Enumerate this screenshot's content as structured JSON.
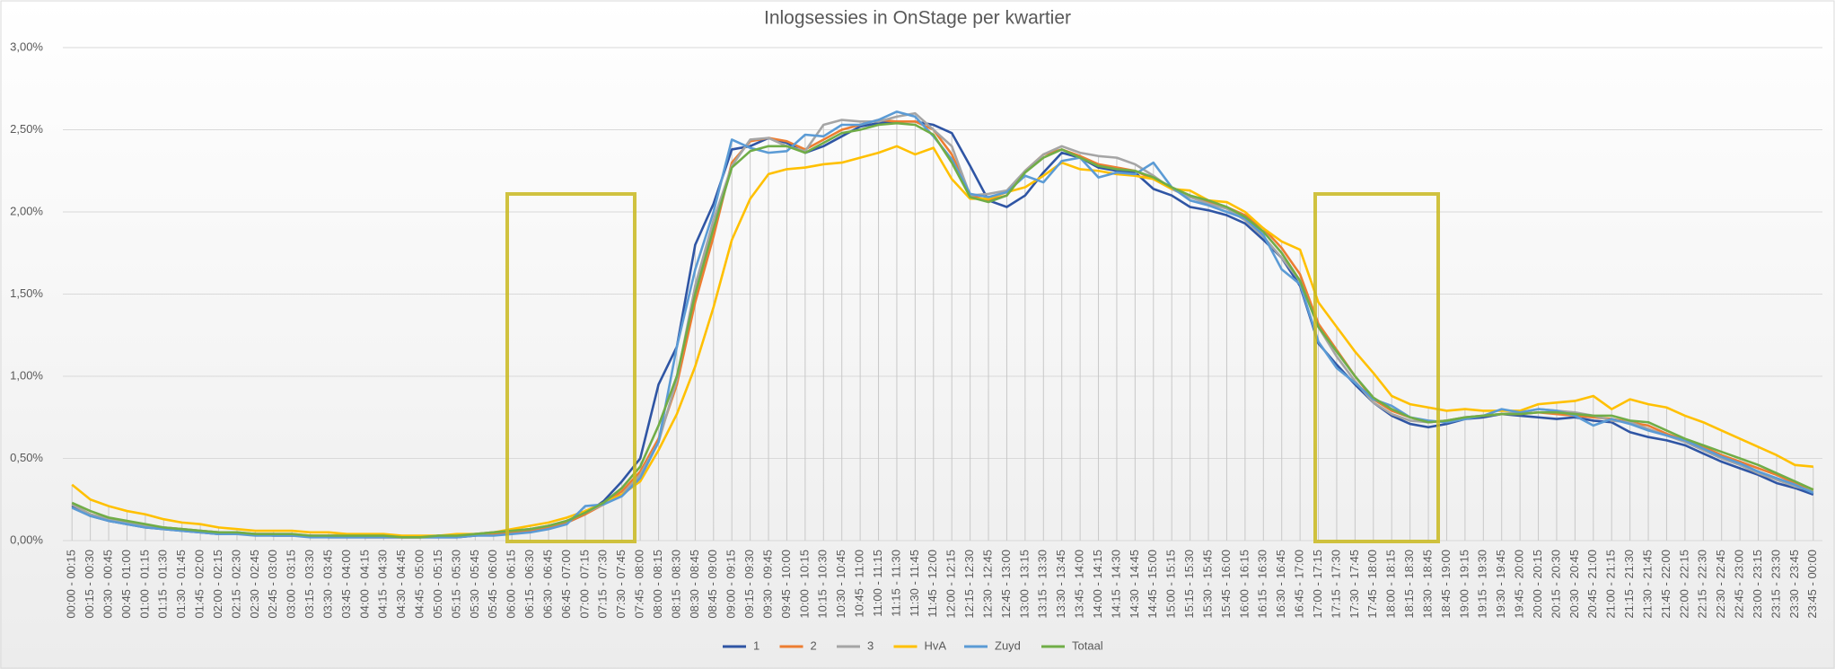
{
  "chart_data": {
    "type": "line",
    "title": "Inlogsessies in OnStage per kwartier",
    "categories": [
      "00:00 - 00:15",
      "00:15 - 00:30",
      "00:30 - 00:45",
      "00:45 - 01:00",
      "01:00 - 01:15",
      "01:15 - 01:30",
      "01:30 - 01:45",
      "01:45 - 02:00",
      "02:00 - 02:15",
      "02:15 - 02:30",
      "02:30 - 02:45",
      "02:45 - 03:00",
      "03:00 - 03:15",
      "03:15 - 03:30",
      "03:30 - 03:45",
      "03:45 - 04:00",
      "04:00 - 04:15",
      "04:15 - 04:30",
      "04:30 - 04:45",
      "04:45 - 05:00",
      "05:00 - 05:15",
      "05:15 - 05:30",
      "05:30 - 05:45",
      "05:45 - 06:00",
      "06:00 - 06:15",
      "06:15 - 06:30",
      "06:30 - 06:45",
      "06:45 - 07:00",
      "07:00 - 07:15",
      "07:15 - 07:30",
      "07:30 - 07:45",
      "07:45 - 08:00",
      "08:00 - 08:15",
      "08:15 - 08:30",
      "08:30 - 08:45",
      "08:45 - 09:00",
      "09:00 - 09:15",
      "09:15 - 09:30",
      "09:30 - 09:45",
      "09:45 - 10:00",
      "10:00 - 10:15",
      "10:15 - 10:30",
      "10:30 - 10:45",
      "10:45 - 11:00",
      "11:00 - 11:15",
      "11:15 - 11:30",
      "11:30 - 11:45",
      "11:45 - 12:00",
      "12:00 - 12:15",
      "12:15 - 12:30",
      "12:30 - 12:45",
      "12:45 - 13:00",
      "13:00 - 13:15",
      "13:15 - 13:30",
      "13:30 - 13:45",
      "13:45 - 14:00",
      "14:00 - 14:15",
      "14:15 - 14:30",
      "14:30 - 14:45",
      "14:45 - 15:00",
      "15:00 - 15:15",
      "15:15 - 15:30",
      "15:30 - 15:45",
      "15:45 - 16:00",
      "16:00 - 16:15",
      "16:15 - 16:30",
      "16:30 - 16:45",
      "16:45 - 17:00",
      "17:00 - 17:15",
      "17:15 - 17:30",
      "17:30 - 17:45",
      "17:45 - 18:00",
      "18:00 - 18:15",
      "18:15 - 18:30",
      "18:30 - 18:45",
      "18:45 - 19:00",
      "19:00 - 19:15",
      "19:15 - 19:30",
      "19:30 - 19:45",
      "19:45 - 20:00",
      "20:00 - 20:15",
      "20:15 - 20:30",
      "20:30 - 20:45",
      "20:45 - 21:00",
      "21:00 - 21:15",
      "21:15 - 21:30",
      "21:30 - 21:45",
      "21:45 - 22:00",
      "22:00 - 22:15",
      "22:15 - 22:30",
      "22:30 - 22:45",
      "22:45 - 23:00",
      "23:00 - 23:15",
      "23:15 - 23:30",
      "23:30 - 23:45",
      "23:45 - 00:00"
    ],
    "series": [
      {
        "name": "1",
        "color": "#2f55a4",
        "values": [
          0.21,
          0.15,
          0.12,
          0.1,
          0.08,
          0.07,
          0.06,
          0.05,
          0.04,
          0.04,
          0.04,
          0.03,
          0.03,
          0.03,
          0.02,
          0.02,
          0.02,
          0.02,
          0.02,
          0.02,
          0.02,
          0.02,
          0.03,
          0.04,
          0.05,
          0.06,
          0.08,
          0.11,
          0.16,
          0.24,
          0.36,
          0.5,
          0.95,
          1.18,
          1.8,
          2.05,
          2.38,
          2.4,
          2.45,
          2.42,
          2.36,
          2.4,
          2.46,
          2.52,
          2.54,
          2.55,
          2.55,
          2.53,
          2.48,
          2.28,
          2.07,
          2.03,
          2.1,
          2.24,
          2.36,
          2.33,
          2.27,
          2.25,
          2.24,
          2.14,
          2.1,
          2.03,
          2.01,
          1.98,
          1.93,
          1.83,
          1.72,
          1.55,
          1.2,
          1.07,
          0.95,
          0.84,
          0.76,
          0.71,
          0.69,
          0.71,
          0.74,
          0.75,
          0.77,
          0.76,
          0.75,
          0.74,
          0.75,
          0.73,
          0.72,
          0.66,
          0.63,
          0.61,
          0.58,
          0.53,
          0.48,
          0.44,
          0.4,
          0.35,
          0.32,
          0.28
        ]
      },
      {
        "name": "2",
        "color": "#ed7d31",
        "values": [
          0.22,
          0.16,
          0.13,
          0.11,
          0.09,
          0.08,
          0.07,
          0.06,
          0.05,
          0.04,
          0.04,
          0.04,
          0.03,
          0.03,
          0.03,
          0.03,
          0.02,
          0.02,
          0.02,
          0.02,
          0.03,
          0.03,
          0.04,
          0.04,
          0.05,
          0.06,
          0.08,
          0.11,
          0.16,
          0.22,
          0.3,
          0.42,
          0.62,
          0.95,
          1.45,
          1.85,
          2.3,
          2.43,
          2.45,
          2.43,
          2.38,
          2.44,
          2.5,
          2.53,
          2.56,
          2.55,
          2.55,
          2.5,
          2.35,
          2.1,
          2.07,
          2.1,
          2.25,
          2.35,
          2.38,
          2.34,
          2.29,
          2.27,
          2.25,
          2.2,
          2.14,
          2.09,
          2.06,
          2.03,
          1.98,
          1.9,
          1.78,
          1.62,
          1.32,
          1.16,
          1.0,
          0.86,
          0.79,
          0.75,
          0.72,
          0.73,
          0.75,
          0.76,
          0.77,
          0.77,
          0.78,
          0.77,
          0.76,
          0.75,
          0.74,
          0.72,
          0.7,
          0.65,
          0.61,
          0.57,
          0.52,
          0.48,
          0.44,
          0.4,
          0.35,
          0.31
        ]
      },
      {
        "name": "3",
        "color": "#a5a5a5",
        "values": [
          0.22,
          0.16,
          0.13,
          0.11,
          0.09,
          0.08,
          0.07,
          0.06,
          0.05,
          0.05,
          0.04,
          0.04,
          0.04,
          0.03,
          0.03,
          0.03,
          0.03,
          0.03,
          0.02,
          0.02,
          0.03,
          0.03,
          0.04,
          0.05,
          0.06,
          0.07,
          0.09,
          0.12,
          0.17,
          0.22,
          0.28,
          0.4,
          0.6,
          0.98,
          1.55,
          1.95,
          2.28,
          2.44,
          2.45,
          2.4,
          2.37,
          2.53,
          2.56,
          2.55,
          2.55,
          2.58,
          2.6,
          2.5,
          2.4,
          2.1,
          2.11,
          2.13,
          2.25,
          2.35,
          2.4,
          2.36,
          2.34,
          2.33,
          2.29,
          2.22,
          2.14,
          2.09,
          2.05,
          2.02,
          1.95,
          1.85,
          1.72,
          1.58,
          1.3,
          1.12,
          0.97,
          0.84,
          0.77,
          0.73,
          0.72,
          0.73,
          0.75,
          0.76,
          0.77,
          0.78,
          0.8,
          0.79,
          0.78,
          0.76,
          0.73,
          0.72,
          0.68,
          0.64,
          0.6,
          0.55,
          0.5,
          0.46,
          0.41,
          0.37,
          0.33,
          0.3
        ]
      },
      {
        "name": "HvA",
        "color": "#ffc000",
        "values": [
          0.34,
          0.25,
          0.21,
          0.18,
          0.16,
          0.13,
          0.11,
          0.1,
          0.08,
          0.07,
          0.06,
          0.06,
          0.06,
          0.05,
          0.05,
          0.04,
          0.04,
          0.04,
          0.03,
          0.03,
          0.03,
          0.04,
          0.04,
          0.05,
          0.07,
          0.09,
          0.11,
          0.14,
          0.18,
          0.23,
          0.28,
          0.36,
          0.55,
          0.77,
          1.06,
          1.42,
          1.83,
          2.08,
          2.23,
          2.26,
          2.27,
          2.29,
          2.3,
          2.33,
          2.36,
          2.4,
          2.35,
          2.39,
          2.2,
          2.08,
          2.08,
          2.12,
          2.15,
          2.22,
          2.3,
          2.26,
          2.25,
          2.23,
          2.22,
          2.2,
          2.14,
          2.13,
          2.07,
          2.06,
          2.0,
          1.9,
          1.82,
          1.77,
          1.45,
          1.3,
          1.15,
          1.02,
          0.88,
          0.83,
          0.81,
          0.79,
          0.8,
          0.79,
          0.79,
          0.79,
          0.83,
          0.84,
          0.85,
          0.88,
          0.8,
          0.86,
          0.83,
          0.81,
          0.76,
          0.72,
          0.67,
          0.62,
          0.57,
          0.52,
          0.46,
          0.45
        ]
      },
      {
        "name": "Zuyd",
        "color": "#5b9bd5",
        "values": [
          0.2,
          0.15,
          0.12,
          0.1,
          0.08,
          0.07,
          0.06,
          0.05,
          0.04,
          0.04,
          0.03,
          0.03,
          0.03,
          0.02,
          0.02,
          0.02,
          0.02,
          0.02,
          0.02,
          0.02,
          0.02,
          0.02,
          0.03,
          0.03,
          0.04,
          0.05,
          0.07,
          0.1,
          0.21,
          0.22,
          0.27,
          0.38,
          0.6,
          1.18,
          1.65,
          2.0,
          2.44,
          2.39,
          2.36,
          2.37,
          2.47,
          2.46,
          2.53,
          2.53,
          2.56,
          2.61,
          2.58,
          2.46,
          2.32,
          2.11,
          2.09,
          2.12,
          2.22,
          2.18,
          2.31,
          2.33,
          2.21,
          2.24,
          2.23,
          2.3,
          2.15,
          2.07,
          2.04,
          2.0,
          1.96,
          1.86,
          1.65,
          1.56,
          1.21,
          1.05,
          0.96,
          0.86,
          0.82,
          0.75,
          0.73,
          0.72,
          0.74,
          0.76,
          0.8,
          0.78,
          0.8,
          0.79,
          0.76,
          0.7,
          0.74,
          0.71,
          0.67,
          0.64,
          0.61,
          0.56,
          0.51,
          0.47,
          0.42,
          0.38,
          0.34,
          0.29
        ]
      },
      {
        "name": "Totaal",
        "color": "#70ad47",
        "values": [
          0.23,
          0.18,
          0.14,
          0.12,
          0.1,
          0.08,
          0.07,
          0.06,
          0.05,
          0.05,
          0.04,
          0.04,
          0.04,
          0.03,
          0.03,
          0.03,
          0.03,
          0.03,
          0.02,
          0.02,
          0.03,
          0.03,
          0.04,
          0.05,
          0.06,
          0.07,
          0.09,
          0.12,
          0.17,
          0.23,
          0.32,
          0.45,
          0.7,
          1.0,
          1.5,
          1.9,
          2.27,
          2.37,
          2.4,
          2.4,
          2.36,
          2.42,
          2.48,
          2.5,
          2.53,
          2.54,
          2.53,
          2.47,
          2.3,
          2.09,
          2.06,
          2.1,
          2.24,
          2.33,
          2.38,
          2.33,
          2.28,
          2.26,
          2.25,
          2.21,
          2.15,
          2.1,
          2.07,
          2.03,
          1.97,
          1.88,
          1.75,
          1.58,
          1.3,
          1.15,
          1.0,
          0.87,
          0.8,
          0.75,
          0.72,
          0.73,
          0.75,
          0.76,
          0.77,
          0.77,
          0.78,
          0.78,
          0.77,
          0.76,
          0.76,
          0.73,
          0.72,
          0.67,
          0.62,
          0.58,
          0.54,
          0.5,
          0.46,
          0.41,
          0.36,
          0.31
        ]
      }
    ],
    "ylim": [
      0,
      3
    ],
    "yticks": [
      {
        "value": 0,
        "label": "0,00%"
      },
      {
        "value": 0.5,
        "label": "0,50%"
      },
      {
        "value": 1,
        "label": "1,00%"
      },
      {
        "value": 1.5,
        "label": "1,50%"
      },
      {
        "value": 2,
        "label": "2,00%"
      },
      {
        "value": 2.5,
        "label": "2,50%"
      },
      {
        "value": 3,
        "label": "3,00%"
      }
    ],
    "grid": true,
    "legend": "bottom"
  }
}
